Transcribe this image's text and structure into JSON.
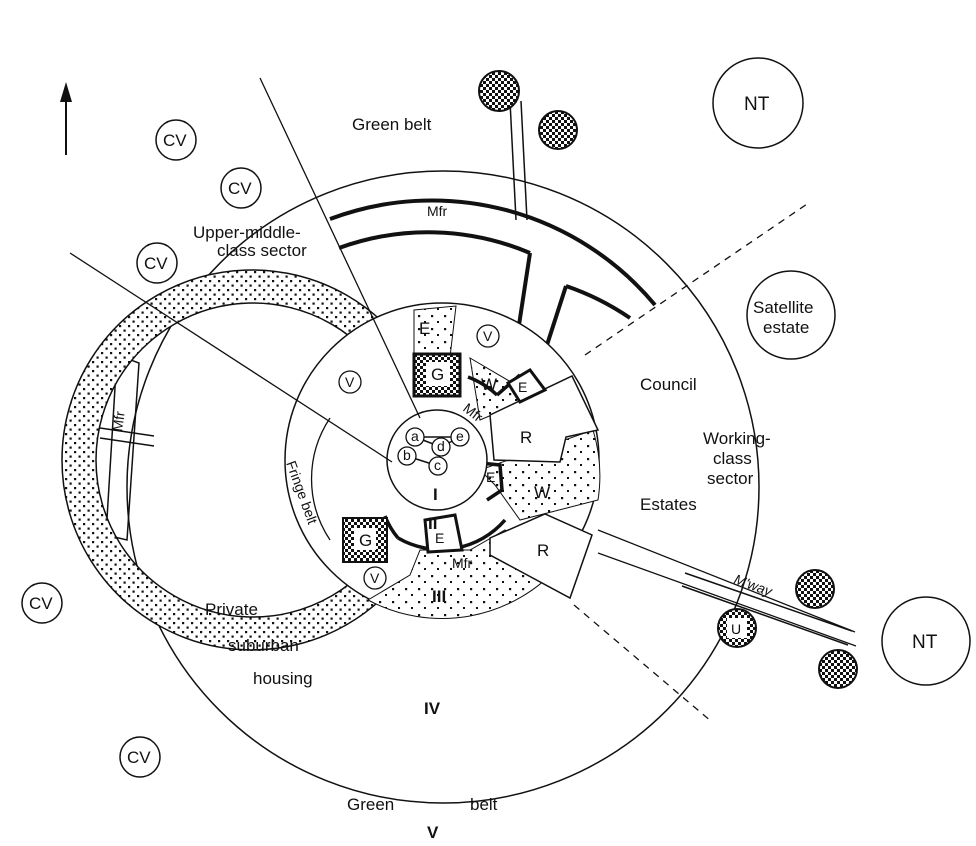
{
  "labels": {
    "green_belt_top": "Green belt",
    "green_belt_bottom_1": "Green",
    "green_belt_bottom_2": "belt",
    "upper_middle_1": "Upper-middle-",
    "upper_middle_2": "class sector",
    "mfr": "Mfr",
    "fringe_belt": "Fringe belt",
    "council": "Council",
    "estates": "Estates",
    "working_1": "Working-",
    "working_2": "class",
    "working_3": "sector",
    "satellite_1": "Satellite",
    "satellite_2": "estate",
    "private_1": "Private",
    "private_2": "suburban",
    "private_3": "housing",
    "motorway": "M'way",
    "nt": "NT",
    "cv": "CV",
    "zone_i": "I",
    "zone_ii": "II",
    "zone_iii": "III",
    "zone_iv": "IV",
    "zone_v": "V",
    "e": "E",
    "w": "W",
    "r": "R",
    "g": "G",
    "v": "V",
    "u": "U",
    "core_a": "a",
    "core_b": "b",
    "core_c": "c",
    "core_d": "d",
    "core_e": "e"
  }
}
